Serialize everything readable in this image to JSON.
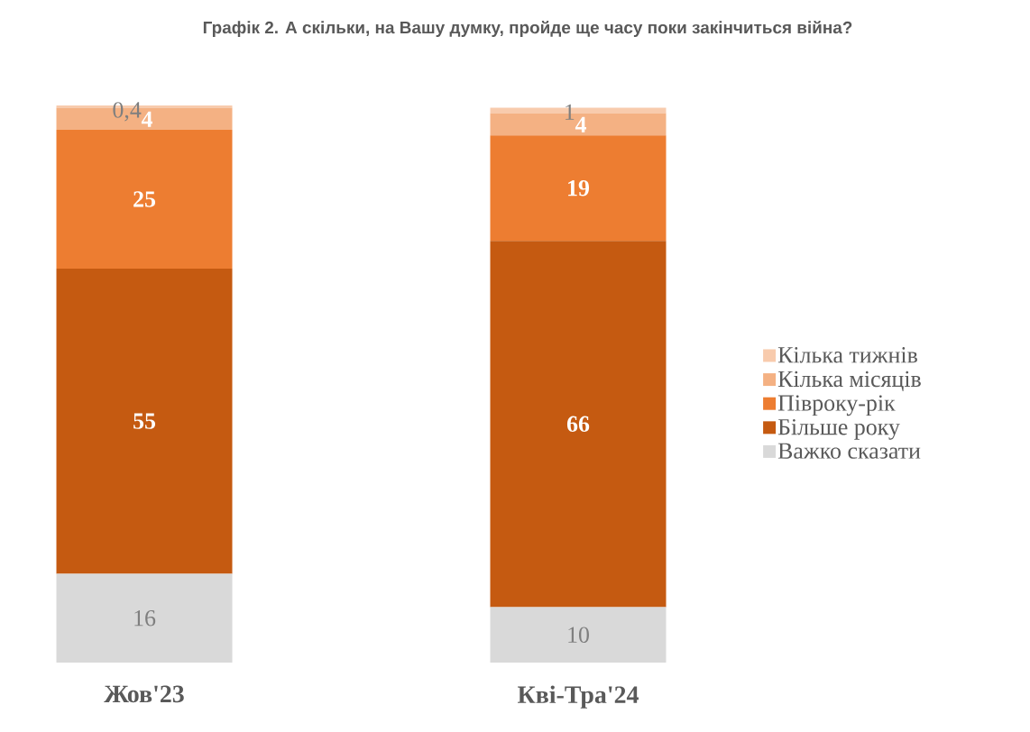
{
  "chart_data": {
    "type": "bar",
    "stacked": true,
    "title": "Графік 2. А скільки, на Вашу думку, пройде ще часу поки закінчиться війна?",
    "categories": [
      "Жов'23",
      "Кві-Тра'24"
    ],
    "legend": "right",
    "series": [
      {
        "name": "Важко сказати",
        "color": "#d9d9d9",
        "values": [
          16,
          10
        ],
        "value_labels": [
          "16",
          "10"
        ]
      },
      {
        "name": "Більше року",
        "color": "#c55a11",
        "values": [
          55,
          66
        ],
        "value_labels": [
          "55",
          "66"
        ]
      },
      {
        "name": "Півроку-рік",
        "color": "#ed7d31",
        "values": [
          25,
          19
        ],
        "value_labels": [
          "25",
          "19"
        ]
      },
      {
        "name": "Кілька місяців",
        "color": "#f4b183",
        "values": [
          4,
          4
        ],
        "value_labels": [
          "4",
          "4"
        ]
      },
      {
        "name": "Кілька тижнів",
        "color": "#f8cbad",
        "values": [
          0.4,
          1
        ],
        "value_labels": [
          "0,4",
          "1"
        ]
      }
    ]
  }
}
